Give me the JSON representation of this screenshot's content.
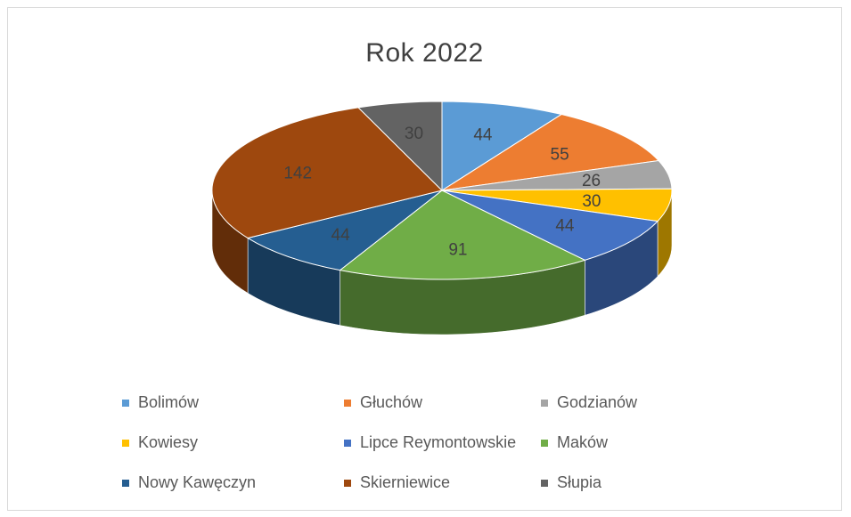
{
  "chart_data": {
    "type": "pie",
    "title": "Rok 2022",
    "categories": [
      "Bolimów",
      "Głuchów",
      "Godzianów",
      "Kowiesy",
      "Lipce Reymontowskie",
      "Maków",
      "Nowy Kawęczyn",
      "Skierniewice",
      "Słupia"
    ],
    "values": [
      44,
      55,
      26,
      30,
      44,
      91,
      44,
      142,
      30
    ],
    "colors": [
      "#5b9bd5",
      "#ed7d31",
      "#a5a5a5",
      "#ffc000",
      "#4472c4",
      "#70ad47",
      "#255e91",
      "#9e480e",
      "#636363"
    ],
    "data_labels": true,
    "legend_position": "bottom",
    "style": "3d"
  }
}
